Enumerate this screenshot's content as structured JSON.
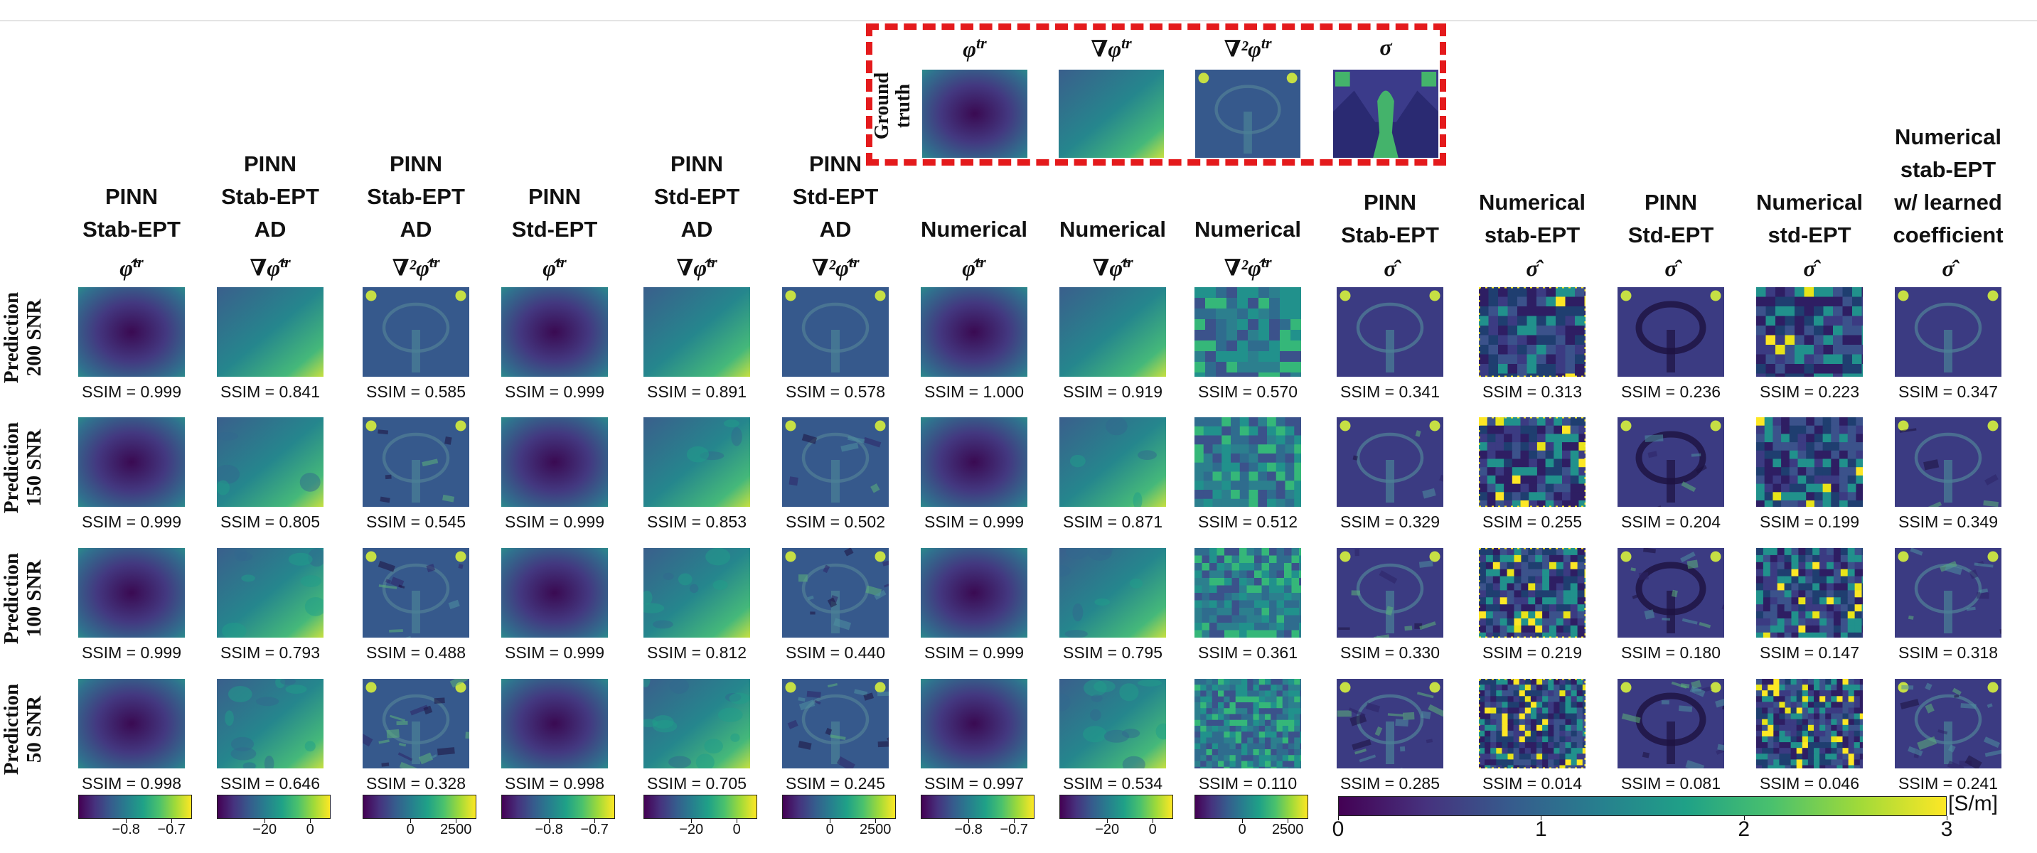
{
  "ground_truth": {
    "label_line1": "Ground",
    "label_line2": "truth",
    "panels": [
      {
        "title": "φ",
        "sup": "tr",
        "kind": "phi"
      },
      {
        "title": "∇φ",
        "sup": "tr",
        "kind": "grad"
      },
      {
        "title": "∇²φ",
        "sup": "tr",
        "kind": "lap"
      },
      {
        "title": "σ",
        "sup": "",
        "kind": "sigma"
      }
    ]
  },
  "columns": [
    {
      "lines": [
        "PINN",
        "Stab-EPT"
      ],
      "symbol": "φ̂",
      "sup": "tr",
      "kind": "phi"
    },
    {
      "lines": [
        "PINN",
        "Stab-EPT",
        "AD"
      ],
      "symbol": "∇φ̂",
      "sup": "tr",
      "kind": "grad"
    },
    {
      "lines": [
        "PINN",
        "Stab-EPT",
        "AD"
      ],
      "symbol": "∇²φ̂",
      "sup": "tr",
      "kind": "lap"
    },
    {
      "lines": [
        "PINN",
        "Std-EPT"
      ],
      "symbol": "φ̂",
      "sup": "tr",
      "kind": "phi"
    },
    {
      "lines": [
        "PINN",
        "Std-EPT",
        "AD"
      ],
      "symbol": "∇φ̂",
      "sup": "tr",
      "kind": "grad"
    },
    {
      "lines": [
        "PINN",
        "Std-EPT",
        "AD"
      ],
      "symbol": "∇²φ̂",
      "sup": "tr",
      "kind": "lap"
    },
    {
      "lines": [
        "Numerical"
      ],
      "symbol": "φ̂",
      "sup": "tr",
      "kind": "phi"
    },
    {
      "lines": [
        "Numerical"
      ],
      "symbol": "∇φ̂",
      "sup": "tr",
      "kind": "grad"
    },
    {
      "lines": [
        "Numerical"
      ],
      "symbol": "∇²φ̂",
      "sup": "tr",
      "kind": "lapnoise"
    },
    {
      "lines": [
        "PINN",
        "Stab-EPT"
      ],
      "symbol": "σ̂",
      "sup": "",
      "kind": "sigsmooth"
    },
    {
      "lines": [
        "Numerical",
        "stab-EPT"
      ],
      "symbol": "σ̂",
      "sup": "",
      "kind": "signoise"
    },
    {
      "lines": [
        "PINN",
        "Std-EPT"
      ],
      "symbol": "σ̂",
      "sup": "",
      "kind": "sigstd"
    },
    {
      "lines": [
        "Numerical",
        "std-EPT"
      ],
      "symbol": "σ̂",
      "sup": "",
      "kind": "signoise2"
    },
    {
      "lines": [
        "Numerical",
        "stab-EPT",
        "w/ learned",
        "coefficient"
      ],
      "symbol": "σ̂",
      "sup": "",
      "kind": "sigsmooth"
    }
  ],
  "rows": [
    {
      "line1": "Prediction",
      "line2": "200 SNR",
      "ssim": [
        "SSIM = 0.999",
        "SSIM = 0.841",
        "SSIM = 0.585",
        "SSIM = 0.999",
        "SSIM = 0.891",
        "SSIM = 0.578",
        "SSIM = 1.000",
        "SSIM = 0.919",
        "SSIM = 0.570",
        "SSIM = 0.341",
        "SSIM = 0.313",
        "SSIM = 0.236",
        "SSIM = 0.223",
        "SSIM = 0.347"
      ]
    },
    {
      "line1": "Prediction",
      "line2": "150 SNR",
      "ssim": [
        "SSIM = 0.999",
        "SSIM = 0.805",
        "SSIM = 0.545",
        "SSIM = 0.999",
        "SSIM = 0.853",
        "SSIM = 0.502",
        "SSIM = 0.999",
        "SSIM = 0.871",
        "SSIM = 0.512",
        "SSIM = 0.329",
        "SSIM = 0.255",
        "SSIM = 0.204",
        "SSIM = 0.199",
        "SSIM = 0.349"
      ]
    },
    {
      "line1": "Prediction",
      "line2": "100 SNR",
      "ssim": [
        "SSIM = 0.999",
        "SSIM = 0.793",
        "SSIM = 0.488",
        "SSIM = 0.999",
        "SSIM = 0.812",
        "SSIM = 0.440",
        "SSIM = 0.999",
        "SSIM = 0.795",
        "SSIM = 0.361",
        "SSIM = 0.330",
        "SSIM = 0.219",
        "SSIM = 0.180",
        "SSIM = 0.147",
        "SSIM = 0.318"
      ]
    },
    {
      "line1": "Prediction",
      "line2": "50 SNR",
      "ssim": [
        "SSIM = 0.998",
        "SSIM = 0.646",
        "SSIM = 0.328",
        "SSIM = 0.998",
        "SSIM = 0.705",
        "SSIM = 0.245",
        "SSIM = 0.997",
        "SSIM = 0.534",
        "SSIM = 0.110",
        "SSIM = 0.285",
        "SSIM = 0.014",
        "SSIM = 0.081",
        "SSIM = 0.046",
        "SSIM = 0.241"
      ]
    }
  ],
  "small_colorbars": [
    {
      "ticks": [
        "−0.8",
        "−0.7"
      ]
    },
    {
      "ticks": [
        "−20",
        "0"
      ]
    },
    {
      "ticks": [
        "0",
        "2500"
      ]
    },
    {
      "ticks": [
        "−0.8",
        "−0.7"
      ]
    },
    {
      "ticks": [
        "−20",
        "0"
      ]
    },
    {
      "ticks": [
        "0",
        "2500"
      ]
    },
    {
      "ticks": [
        "−0.8",
        "−0.7"
      ]
    },
    {
      "ticks": [
        "−20",
        "0"
      ]
    },
    {
      "ticks": [
        "0",
        "2500"
      ]
    }
  ],
  "sigma_colorbar": {
    "ticks": [
      "0",
      "1",
      "2",
      "3"
    ],
    "unit": "[S/m]"
  },
  "colors": {
    "dashed_box": "#e41a1c",
    "viridis_dark": "#440154",
    "viridis_mid": "#21918c",
    "viridis_light": "#fde725"
  }
}
